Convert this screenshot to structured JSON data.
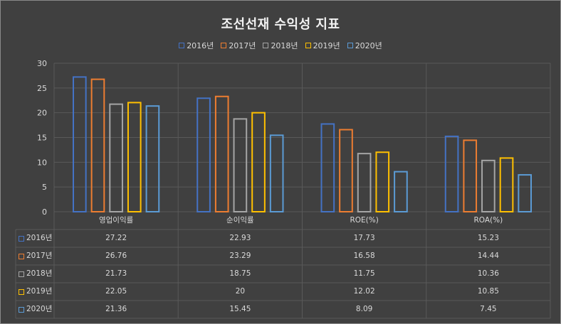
{
  "chart_data": {
    "type": "bar",
    "title": "조선선재 수익성 지표",
    "categories": [
      "영업이익률",
      "순이익률",
      "ROE(%)",
      "ROA(%)"
    ],
    "series": [
      {
        "name": "2016년",
        "color": "#4472C4",
        "values": [
          27.22,
          22.93,
          17.73,
          15.23
        ]
      },
      {
        "name": "2017년",
        "color": "#ED7D31",
        "values": [
          26.76,
          23.29,
          16.58,
          14.44
        ]
      },
      {
        "name": "2018년",
        "color": "#A5A5A5",
        "values": [
          21.73,
          18.75,
          11.75,
          10.36
        ]
      },
      {
        "name": "2019년",
        "color": "#FFC000",
        "values": [
          22.05,
          20,
          12.02,
          10.85
        ]
      },
      {
        "name": "2020년",
        "color": "#5B9BD5",
        "values": [
          21.36,
          15.45,
          8.09,
          7.45
        ]
      }
    ],
    "ylim": [
      0,
      30
    ],
    "yticks": [
      0,
      5,
      10,
      15,
      20,
      25,
      30
    ],
    "legend_position": "top",
    "grid": true,
    "data_table": true
  }
}
